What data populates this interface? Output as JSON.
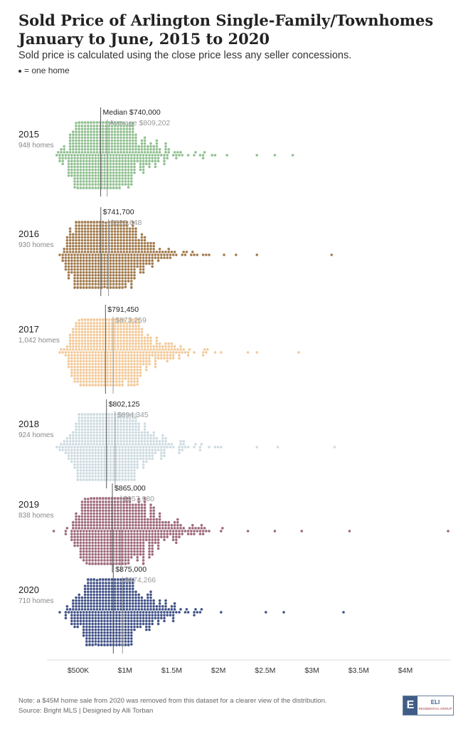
{
  "header": {
    "title_line1": "Sold Price of Arlington Single-Family/Townhomes",
    "title_line2": "January to June, 2015 to 2020",
    "subtitle": "Sold price is calculated using the close price less any seller concessions.",
    "legend_text": "= one home"
  },
  "chart_data": {
    "type": "scatter",
    "subtype": "beeswarm",
    "x_axis": {
      "min": 200000,
      "max": 4500000,
      "ticks": [
        500000,
        1000000,
        1500000,
        2000000,
        2500000,
        3000000,
        3500000,
        4000000
      ],
      "tick_labels": [
        "$500K",
        "$1M",
        "$1.5M",
        "$2M",
        "$2.5M",
        "$3M",
        "$3.5M",
        "$4M"
      ]
    },
    "series": [
      {
        "name": "2015",
        "count_label": "948 homes",
        "count": 948,
        "median": 740000,
        "average": 809202,
        "median_label": "Median $740,000",
        "average_label": "Average $809,202",
        "color": "#8fbf8f",
        "outliers": [
          2100000,
          2400000,
          2600000,
          2800000
        ]
      },
      {
        "name": "2016",
        "count_label": "930 homes",
        "count": 930,
        "median": 741700,
        "average": 823648,
        "median_label": "$741,700",
        "average_label": "$823,648",
        "color": "#a0784a",
        "outliers": [
          2050000,
          2200000,
          2400000,
          3200000
        ]
      },
      {
        "name": "2017",
        "count_label": "1,042 homes",
        "count": 1042,
        "median": 791450,
        "average": 873259,
        "median_label": "$791,450",
        "average_label": "$873,259",
        "color": "#f2c998",
        "outliers": [
          2300000,
          2400000,
          2850000
        ]
      },
      {
        "name": "2018",
        "count_label": "924 homes",
        "count": 924,
        "median": 802125,
        "average": 894345,
        "median_label": "$802,125",
        "average_label": "$894,345",
        "color": "#cddbe0",
        "outliers": [
          300000,
          2400000,
          2650000,
          3250000
        ]
      },
      {
        "name": "2019",
        "count_label": "838 homes",
        "count": 838,
        "median": 865000,
        "average": 957980,
        "median_label": "$865,000",
        "average_label": "$957,980",
        "color": "#9c6679",
        "outliers": [
          250000,
          2300000,
          2600000,
          2900000,
          3400000,
          4450000
        ]
      },
      {
        "name": "2020",
        "count_label": "710 homes",
        "count": 710,
        "median": 875000,
        "average": 974266,
        "median_label": "$875,000",
        "average_label": "$974,266",
        "color": "#3d4e85",
        "outliers": [
          2500000,
          2700000,
          3350000
        ]
      }
    ]
  },
  "footer": {
    "note": "Note: a $45M home sale from 2020 was removed from this dataset for a clearer view of the distribution.",
    "source": "Source: Bright MLS | Designed by Alli Torban",
    "logo_text": "ELI",
    "logo_sub": "RESIDENTIAL GROUP"
  }
}
